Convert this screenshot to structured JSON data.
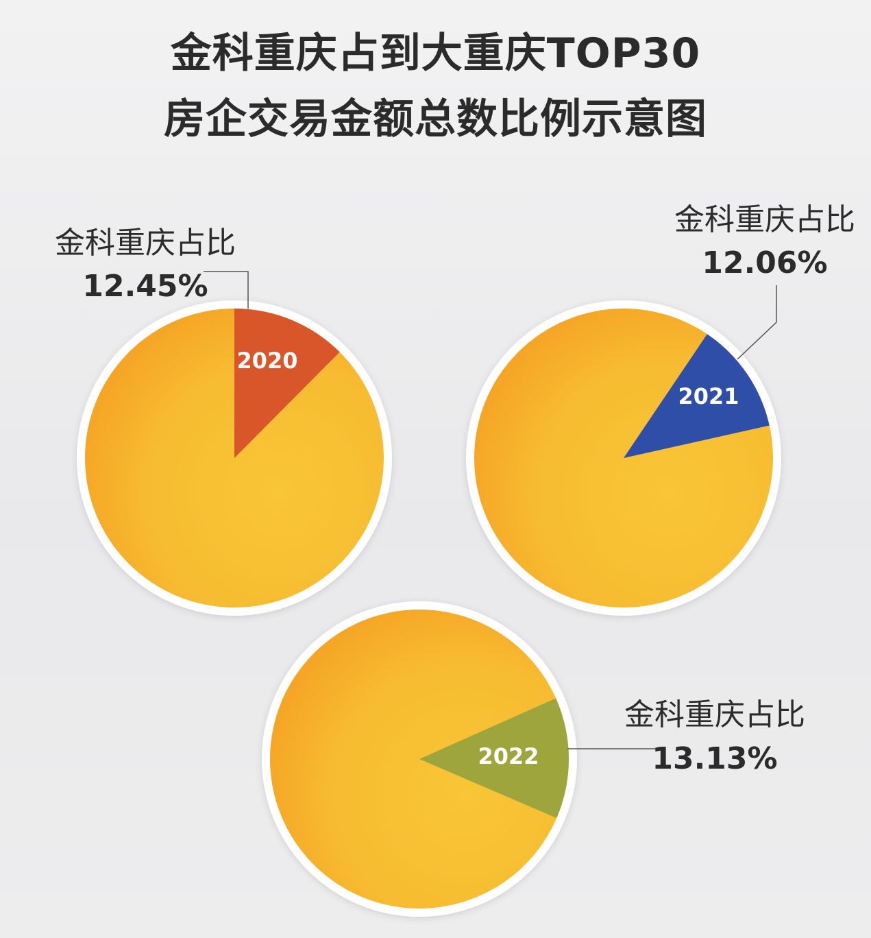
{
  "title": {
    "line1": "金科重庆占到大重庆TOP30",
    "line2": "房企交易金额总数比例示意图"
  },
  "colors": {
    "pie_base": "#f7bd32",
    "pie_shade": "#f6a324",
    "text_dark": "#2b2b2b",
    "leader_line": "#555555"
  },
  "chart_data": [
    {
      "type": "pie",
      "year_label": "2020",
      "share_label": "金科重庆占比",
      "value_label": "12.45%",
      "value": 12.45,
      "remainder": 87.55,
      "slice_color": "#d9552a"
    },
    {
      "type": "pie",
      "year_label": "2021",
      "share_label": "金科重庆占比",
      "value_label": "12.06%",
      "value": 12.06,
      "remainder": 87.94,
      "slice_color": "#2e4ea8"
    },
    {
      "type": "pie",
      "year_label": "2022",
      "share_label": "金科重庆占比",
      "value_label": "13.13%",
      "value": 13.13,
      "remainder": 86.87,
      "slice_color": "#9ea53c"
    }
  ]
}
